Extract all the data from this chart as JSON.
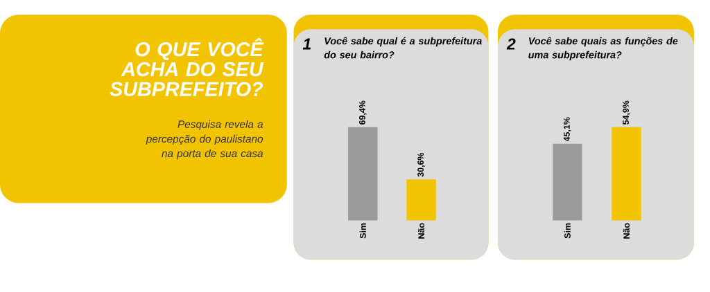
{
  "chart_data": [
    {
      "type": "other",
      "title": "O QUE VOCÊ ACHA DO SEU SUBPREFEITO?",
      "subtitle": "Pesquisa revela a percepção do paulistano na porta de sua casa"
    },
    {
      "type": "bar",
      "title": "Você sabe qual é a subprefeitura do seu bairro?",
      "annotations": [
        "1"
      ],
      "categories": [
        "Sim",
        "Não"
      ],
      "values": [
        69.4,
        30.6
      ],
      "colors": [
        "#9b9b9b",
        "#f2c300"
      ],
      "value_labels": [
        "69,4%",
        "30,6%"
      ],
      "tick_labels": "x"
    },
    {
      "type": "bar",
      "title": "Você sabe quais as funções de uma subprefeitura?",
      "annotations": [
        "2"
      ],
      "categories": [
        "Sim",
        "Não"
      ],
      "values": [
        45.1,
        54.9
      ],
      "colors": [
        "#9b9b9b",
        "#f2c300"
      ],
      "value_labels": [
        "45,1%",
        "54,9%"
      ],
      "tick_labels": "x"
    }
  ]
}
